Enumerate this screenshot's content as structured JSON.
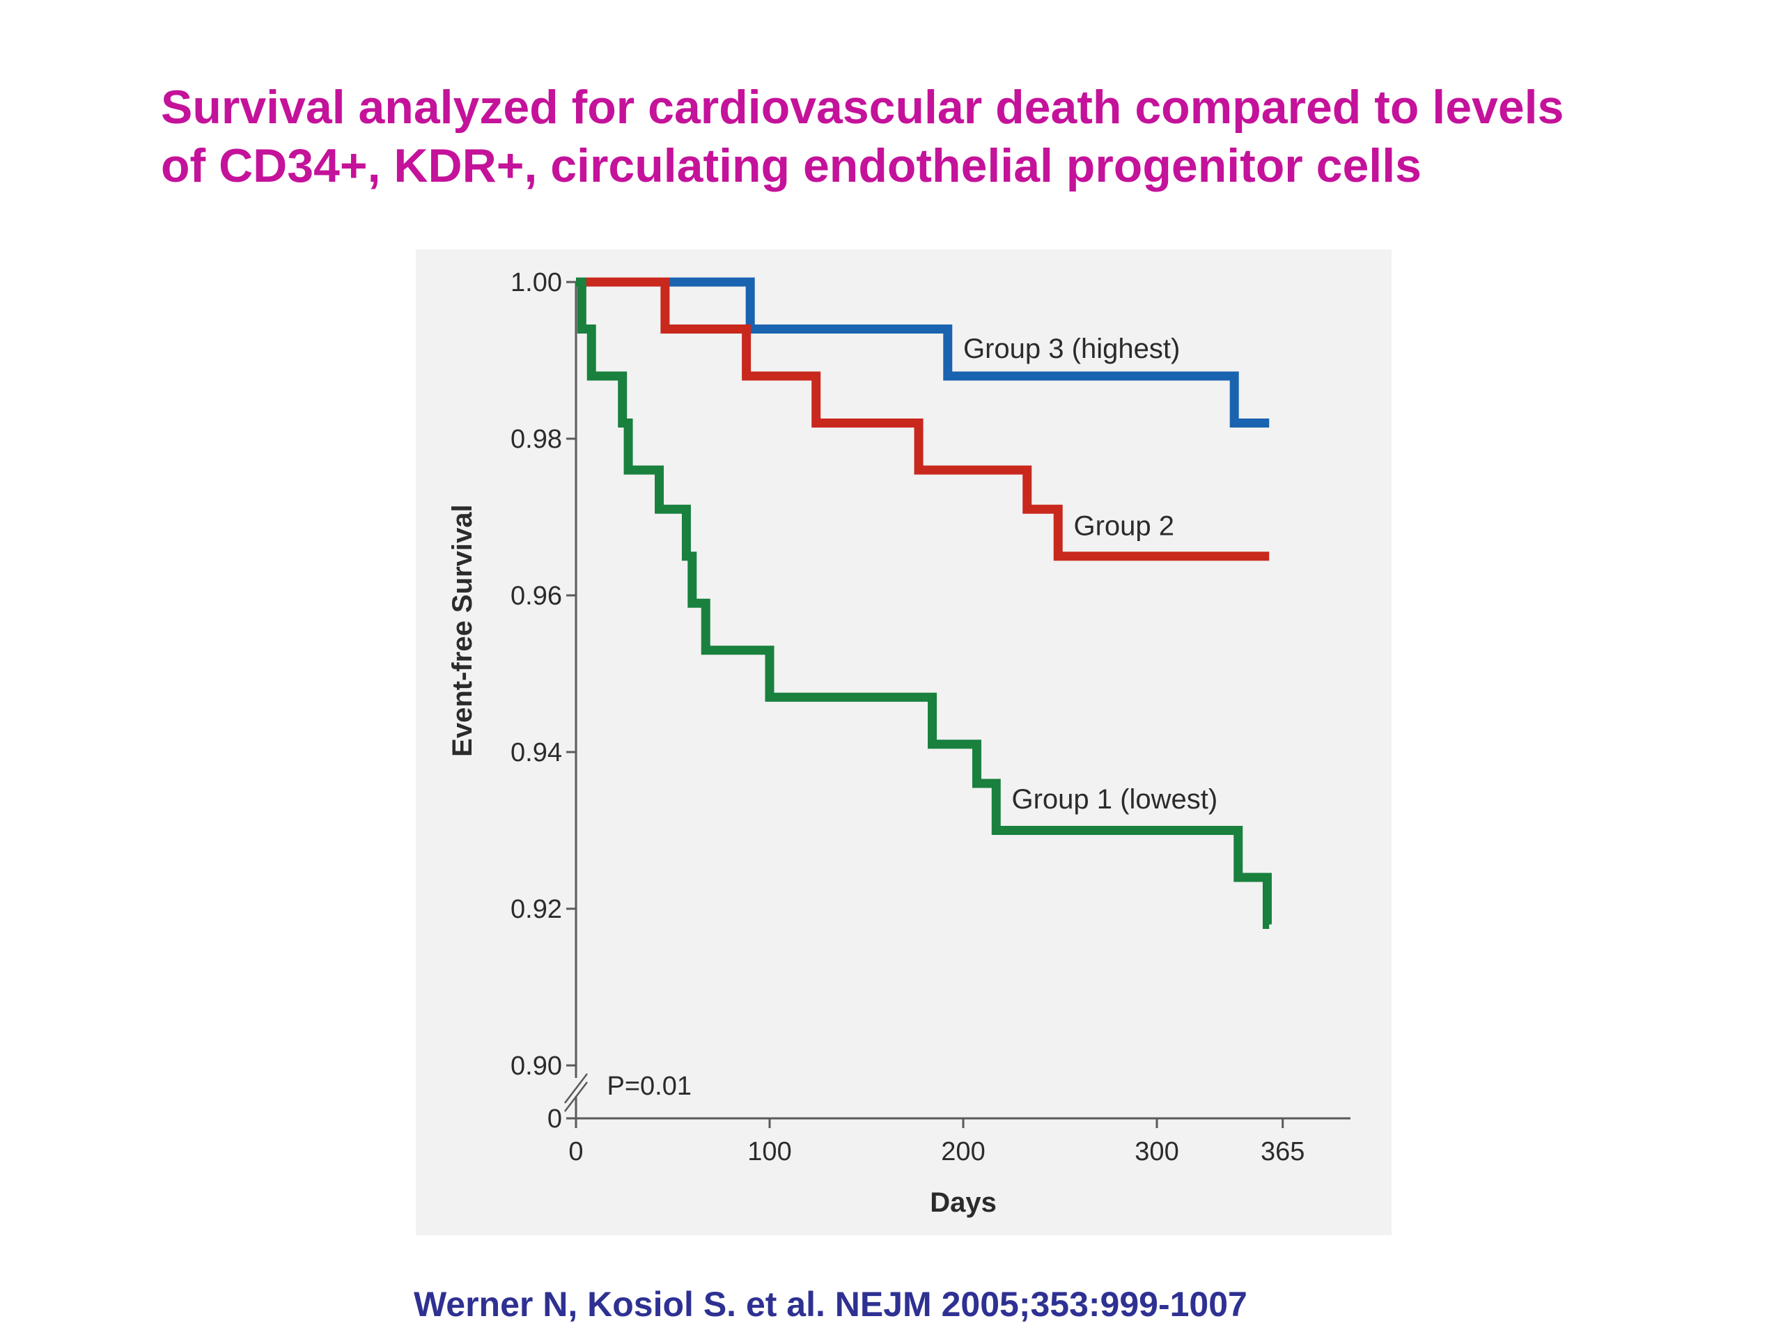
{
  "title": {
    "line1": "Survival analyzed for cardiovascular death compared to levels",
    "line2": "of CD34+, KDR+, circulating endothelial progenitor cells"
  },
  "citation": "Werner N, Kosiol S. et al. NEJM 2005;353:999-1007",
  "chart_data": {
    "type": "line",
    "step": true,
    "xlabel": "Days",
    "ylabel": "Event-free Survival",
    "xlim": [
      0,
      400
    ],
    "ylim": [
      0.9,
      1.0
    ],
    "y_axis_break": true,
    "x_ticks": [
      0,
      100,
      200,
      300,
      365
    ],
    "y_ticks": [
      {
        "value": 1.0,
        "label": "1.00"
      },
      {
        "value": 0.98,
        "label": "0.98"
      },
      {
        "value": 0.96,
        "label": "0.96"
      },
      {
        "value": 0.94,
        "label": "0.94"
      },
      {
        "value": 0.92,
        "label": "0.92"
      },
      {
        "value": 0.9,
        "label": "0.90"
      }
    ],
    "y_break_label": "0",
    "annotation": "P=0.01",
    "grid": false,
    "series": [
      {
        "name": "Group 3 (highest)",
        "color": "#1a63b0",
        "x": [
          0,
          90,
          192,
          340,
          358
        ],
        "y": [
          1.0,
          0.994,
          0.988,
          0.982,
          0.982
        ]
      },
      {
        "name": "Group 2",
        "color": "#c9281d",
        "x": [
          0,
          46,
          88,
          124,
          177,
          233,
          249,
          358
        ],
        "y": [
          1.0,
          0.994,
          0.988,
          0.982,
          0.976,
          0.971,
          0.965,
          0.965
        ]
      },
      {
        "name": "Group 1 (lowest)",
        "color": "#19803e",
        "x": [
          0,
          3,
          8,
          24,
          27,
          43,
          57,
          60,
          62,
          67,
          100,
          184,
          207,
          217,
          342,
          357,
          358
        ],
        "y": [
          1.0,
          0.994,
          0.988,
          0.982,
          0.976,
          0.971,
          0.965,
          0.959,
          0.959,
          0.953,
          0.947,
          0.941,
          0.936,
          0.93,
          0.924,
          0.918,
          0.918
        ]
      }
    ]
  }
}
